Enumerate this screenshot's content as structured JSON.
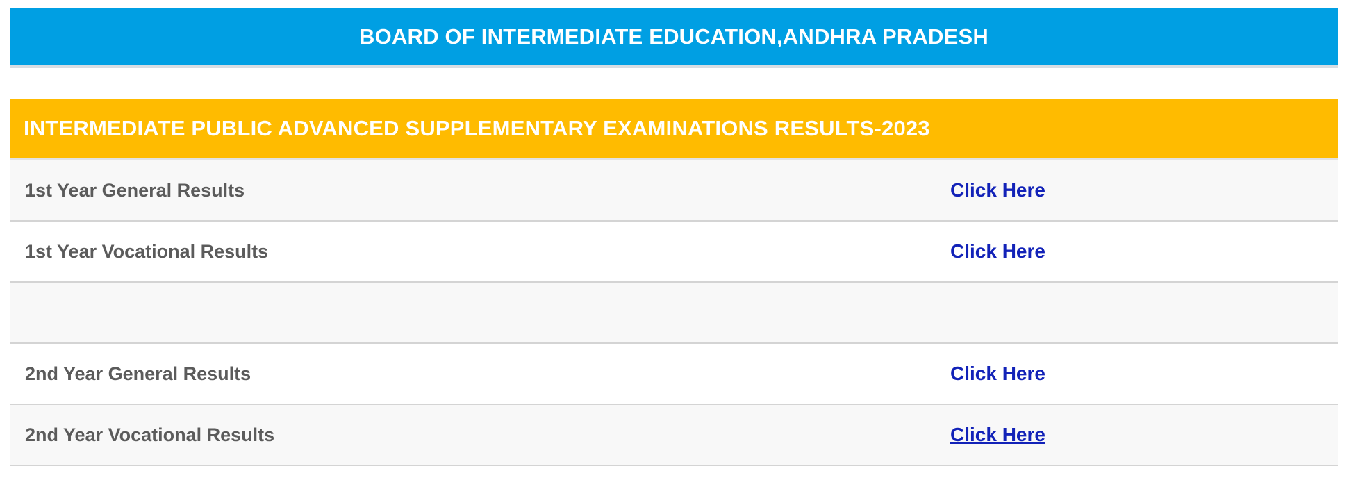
{
  "header": {
    "title": "BOARD OF INTERMEDIATE EDUCATION,ANDHRA PRADESH",
    "background_color": "#009fe3"
  },
  "results_panel": {
    "heading": "INTERMEDIATE PUBLIC ADVANCED SUPPLEMENTARY EXAMINATIONS RESULTS-2023",
    "heading_color": "#ffbb00",
    "link_color": "#1222b8",
    "rows": [
      {
        "label": "1st Year General Results",
        "link": "Click Here"
      },
      {
        "label": "1st Year Vocational Results",
        "link": "Click Here"
      },
      {
        "label": "",
        "link": ""
      },
      {
        "label": "2nd Year General Results",
        "link": "Click Here"
      },
      {
        "label": "2nd Year Vocational Results",
        "link": "Click Here"
      }
    ]
  }
}
